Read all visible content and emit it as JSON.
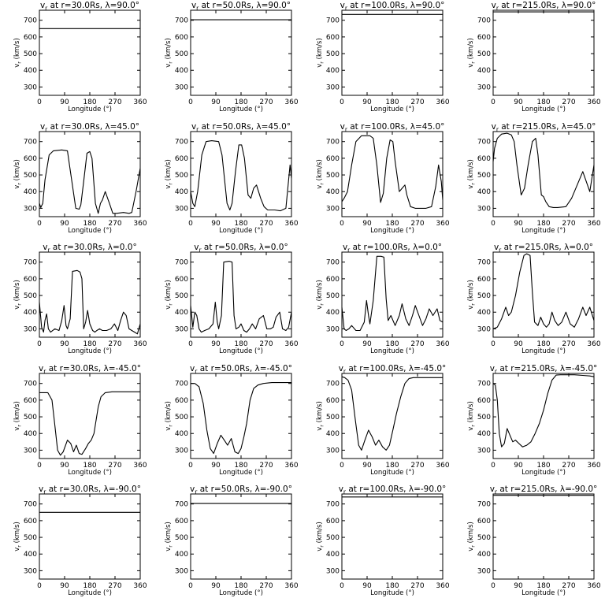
{
  "figure": {
    "xlabel": "Longitude (°)",
    "ylabel_main": "v",
    "ylabel_sub": "r",
    "ylabel_unit": "(km/s)",
    "title_var": "v",
    "title_sub": "r",
    "x_ticks": [
      "0",
      "90",
      "180",
      "270",
      "360"
    ],
    "y_ticks": [
      "300",
      "400",
      "500",
      "600",
      "700"
    ]
  },
  "chart_data": [
    {
      "type": "line",
      "title": "vr at r=30.0Rs, λ=90.0°",
      "r": "30.0",
      "lat": "90.0",
      "xlabel": "Longitude (°)",
      "ylabel": "vr (km/s)",
      "xlim": [
        0,
        360
      ],
      "ylim": [
        250,
        760
      ],
      "x": [
        0,
        360
      ],
      "y": [
        650,
        650
      ]
    },
    {
      "type": "line",
      "title": "vr at r=50.0Rs, λ=90.0°",
      "r": "50.0",
      "lat": "90.0",
      "xlabel": "Longitude (°)",
      "ylabel": "vr (km/s)",
      "xlim": [
        0,
        360
      ],
      "ylim": [
        250,
        760
      ],
      "x": [
        0,
        360
      ],
      "y": [
        703,
        703
      ]
    },
    {
      "type": "line",
      "title": "vr at r=100.0Rs, λ=90.0°",
      "r": "100.0",
      "lat": "90.0",
      "xlabel": "Longitude (°)",
      "ylabel": "vr (km/s)",
      "xlim": [
        0,
        360
      ],
      "ylim": [
        250,
        760
      ],
      "x": [
        0,
        360
      ],
      "y": [
        735,
        735
      ]
    },
    {
      "type": "line",
      "title": "vr at r=215.0Rs, λ=90.0°",
      "r": "215.0",
      "lat": "90.0",
      "xlabel": "Longitude (°)",
      "ylabel": "vr (km/s)",
      "xlim": [
        0,
        360
      ],
      "ylim": [
        250,
        760
      ],
      "x": [
        0,
        360
      ],
      "y": [
        750,
        750
      ]
    },
    {
      "type": "line",
      "title": "vr at r=30.0Rs, λ=45.0°",
      "r": "30.0",
      "lat": "45.0",
      "xlabel": "Longitude (°)",
      "ylabel": "vr (km/s)",
      "xlim": [
        0,
        360
      ],
      "ylim": [
        250,
        760
      ],
      "x": [
        0,
        5,
        12,
        20,
        35,
        50,
        80,
        100,
        110,
        130,
        142,
        148,
        158,
        170,
        180,
        188,
        200,
        210,
        218,
        225,
        235,
        250,
        262,
        275,
        300,
        320,
        330,
        345,
        360
      ],
      "y": [
        330,
        305,
        330,
        470,
        620,
        645,
        650,
        645,
        530,
        300,
        295,
        320,
        460,
        630,
        640,
        600,
        330,
        270,
        330,
        350,
        400,
        330,
        270,
        270,
        275,
        270,
        275,
        400,
        540
      ]
    },
    {
      "type": "line",
      "title": "vr at r=50.0Rs, λ=45.0°",
      "r": "50.0",
      "lat": "45.0",
      "xlabel": "Longitude (°)",
      "ylabel": "vr (km/s)",
      "xlim": [
        0,
        360
      ],
      "ylim": [
        250,
        760
      ],
      "x": [
        0,
        8,
        15,
        25,
        40,
        55,
        75,
        100,
        112,
        130,
        140,
        148,
        160,
        172,
        182,
        192,
        205,
        215,
        225,
        235,
        250,
        262,
        275,
        300,
        320,
        340,
        355,
        360
      ],
      "y": [
        400,
        330,
        310,
        400,
        620,
        700,
        705,
        700,
        620,
        330,
        290,
        330,
        520,
        680,
        680,
        600,
        380,
        360,
        420,
        440,
        360,
        310,
        290,
        290,
        285,
        300,
        560,
        480
      ]
    },
    {
      "type": "line",
      "title": "vr at r=100.0Rs, λ=45.0°",
      "r": "100.0",
      "lat": "45.0",
      "xlabel": "Longitude (°)",
      "ylabel": "vr (km/s)",
      "xlim": [
        0,
        360
      ],
      "ylim": [
        250,
        760
      ],
      "x": [
        0,
        8,
        20,
        35,
        50,
        70,
        100,
        112,
        125,
        138,
        148,
        160,
        172,
        182,
        190,
        205,
        215,
        225,
        232,
        245,
        262,
        280,
        300,
        320,
        335,
        345,
        355,
        360
      ],
      "y": [
        340,
        360,
        400,
        560,
        700,
        735,
        735,
        720,
        560,
        335,
        390,
        600,
        710,
        700,
        580,
        400,
        420,
        440,
        380,
        310,
        300,
        300,
        300,
        310,
        430,
        560,
        460,
        350
      ]
    },
    {
      "type": "line",
      "title": "vr at r=215.0Rs, λ=45.0°",
      "r": "215.0",
      "lat": "45.0",
      "xlabel": "Longitude (°)",
      "ylabel": "vr (km/s)",
      "xlim": [
        0,
        360
      ],
      "ylim": [
        250,
        760
      ],
      "x": [
        0,
        5,
        15,
        30,
        50,
        65,
        75,
        85,
        100,
        112,
        125,
        140,
        152,
        160,
        172,
        180,
        188,
        200,
        215,
        230,
        260,
        280,
        300,
        320,
        345,
        360
      ],
      "y": [
        580,
        660,
        720,
        745,
        750,
        740,
        700,
        560,
        380,
        420,
        560,
        700,
        720,
        620,
        380,
        370,
        340,
        310,
        305,
        305,
        310,
        360,
        440,
        520,
        400,
        560
      ]
    },
    {
      "type": "line",
      "title": "vr at r=30.0Rs, λ=0.0°",
      "r": "30.0",
      "lat": "0.0",
      "xlabel": "Longitude (°)",
      "ylabel": "vr (km/s)",
      "xlim": [
        0,
        360
      ],
      "ylim": [
        250,
        760
      ],
      "x": [
        0,
        8,
        15,
        20,
        26,
        32,
        40,
        55,
        70,
        80,
        88,
        95,
        100,
        110,
        118,
        135,
        145,
        152,
        158,
        165,
        172,
        180,
        190,
        198,
        205,
        215,
        225,
        240,
        255,
        268,
        280,
        290,
        300,
        310,
        320,
        330,
        340,
        350,
        360
      ],
      "y": [
        460,
        310,
        280,
        350,
        390,
        300,
        280,
        300,
        290,
        350,
        440,
        320,
        300,
        360,
        645,
        650,
        640,
        600,
        300,
        340,
        410,
        330,
        290,
        280,
        290,
        300,
        290,
        290,
        300,
        330,
        290,
        350,
        400,
        380,
        300,
        290,
        280,
        270,
        330
      ]
    },
    {
      "type": "line",
      "title": "vr at r=50.0Rs, λ=0.0°",
      "r": "50.0",
      "lat": "0.0",
      "xlabel": "Longitude (°)",
      "ylabel": "vr (km/s)",
      "xlim": [
        0,
        360
      ],
      "ylim": [
        250,
        760
      ],
      "x": [
        0,
        8,
        15,
        22,
        30,
        38,
        50,
        65,
        80,
        88,
        95,
        100,
        110,
        118,
        138,
        148,
        155,
        162,
        172,
        180,
        190,
        200,
        210,
        220,
        232,
        245,
        260,
        272,
        285,
        295,
        305,
        318,
        328,
        340,
        350,
        360
      ],
      "y": [
        440,
        310,
        400,
        380,
        300,
        280,
        290,
        300,
        330,
        460,
        340,
        300,
        380,
        700,
        705,
        700,
        380,
        300,
        310,
        330,
        290,
        280,
        300,
        330,
        300,
        360,
        380,
        300,
        300,
        310,
        370,
        400,
        300,
        290,
        310,
        400
      ]
    },
    {
      "type": "line",
      "title": "vr at r=100.0Rs, λ=0.0°",
      "r": "100.0",
      "lat": "0.0",
      "xlabel": "Longitude (°)",
      "ylabel": "vr (km/s)",
      "xlim": [
        0,
        360
      ],
      "ylim": [
        250,
        760
      ],
      "x": [
        0,
        8,
        15,
        25,
        35,
        50,
        65,
        80,
        88,
        95,
        100,
        112,
        125,
        140,
        150,
        158,
        165,
        175,
        190,
        205,
        215,
        228,
        240,
        252,
        262,
        275,
        288,
        300,
        312,
        325,
        340,
        350,
        360
      ],
      "y": [
        430,
        300,
        290,
        300,
        320,
        290,
        290,
        340,
        470,
        380,
        330,
        470,
        735,
        735,
        730,
        480,
        350,
        380,
        320,
        380,
        450,
        360,
        320,
        380,
        440,
        380,
        320,
        360,
        420,
        380,
        420,
        350,
        340
      ]
    },
    {
      "type": "line",
      "title": "vr at r=215.0Rs, λ=0.0°",
      "r": "215.0",
      "lat": "0.0",
      "xlabel": "Longitude (°)",
      "ylabel": "vr (km/s)",
      "xlim": [
        0,
        360
      ],
      "ylim": [
        250,
        760
      ],
      "x": [
        0,
        15,
        30,
        45,
        55,
        65,
        80,
        95,
        110,
        120,
        132,
        140,
        148,
        160,
        170,
        180,
        190,
        200,
        210,
        220,
        232,
        245,
        260,
        275,
        290,
        305,
        320,
        332,
        345,
        360
      ],
      "y": [
        300,
        310,
        360,
        430,
        380,
        400,
        500,
        640,
        740,
        750,
        740,
        520,
        340,
        320,
        370,
        330,
        310,
        330,
        400,
        350,
        320,
        340,
        400,
        330,
        310,
        360,
        430,
        380,
        430,
        350
      ]
    },
    {
      "type": "line",
      "title": "vr at r=30.0Rs, λ=-45.0°",
      "r": "30.0",
      "lat": "-45.0",
      "xlabel": "Longitude (°)",
      "ylabel": "vr (km/s)",
      "xlim": [
        0,
        360
      ],
      "ylim": [
        250,
        760
      ],
      "x": [
        0,
        30,
        45,
        55,
        65,
        75,
        85,
        100,
        112,
        122,
        132,
        142,
        152,
        165,
        175,
        185,
        195,
        210,
        220,
        235,
        260,
        290,
        320,
        360
      ],
      "y": [
        645,
        645,
        600,
        450,
        300,
        270,
        290,
        360,
        340,
        290,
        330,
        280,
        275,
        310,
        340,
        360,
        400,
        560,
        620,
        645,
        650,
        650,
        650,
        650
      ]
    },
    {
      "type": "line",
      "title": "vr at r=50.0Rs, λ=-45.0°",
      "r": "50.0",
      "lat": "-45.0",
      "xlabel": "Longitude (°)",
      "ylabel": "vr (km/s)",
      "xlim": [
        0,
        360
      ],
      "ylim": [
        250,
        760
      ],
      "x": [
        0,
        15,
        30,
        45,
        58,
        70,
        82,
        95,
        108,
        120,
        132,
        145,
        158,
        170,
        180,
        190,
        200,
        212,
        225,
        240,
        260,
        290,
        330,
        360
      ],
      "y": [
        700,
        700,
        680,
        580,
        420,
        310,
        280,
        340,
        390,
        360,
        330,
        370,
        290,
        280,
        310,
        380,
        460,
        600,
        670,
        690,
        700,
        705,
        705,
        705
      ]
    },
    {
      "type": "line",
      "title": "vr at r=100.0Rs, λ=-45.0°",
      "r": "100.0",
      "lat": "-45.0",
      "xlabel": "Longitude (°)",
      "ylabel": "vr (km/s)",
      "xlim": [
        0,
        360
      ],
      "ylim": [
        250,
        760
      ],
      "x": [
        0,
        10,
        22,
        35,
        48,
        60,
        70,
        82,
        95,
        108,
        120,
        132,
        145,
        158,
        170,
        182,
        195,
        210,
        225,
        240,
        255,
        270,
        300,
        330,
        360
      ],
      "y": [
        740,
        735,
        720,
        660,
        480,
        330,
        300,
        360,
        420,
        380,
        330,
        360,
        320,
        300,
        330,
        420,
        520,
        620,
        700,
        730,
        735,
        735,
        735,
        735,
        735
      ]
    },
    {
      "type": "line",
      "title": "vr at r=215.0Rs, λ=-45.0°",
      "r": "215.0",
      "lat": "-45.0",
      "xlabel": "Longitude (°)",
      "ylabel": "vr (km/s)",
      "xlim": [
        0,
        360
      ],
      "ylim": [
        250,
        760
      ],
      "x": [
        0,
        8,
        15,
        22,
        30,
        40,
        50,
        60,
        70,
        80,
        92,
        105,
        120,
        135,
        150,
        165,
        180,
        195,
        210,
        225,
        240,
        260,
        290,
        320,
        345,
        360
      ],
      "y": [
        700,
        690,
        600,
        400,
        320,
        340,
        430,
        390,
        350,
        360,
        340,
        320,
        330,
        350,
        400,
        460,
        540,
        640,
        720,
        750,
        752,
        752,
        752,
        748,
        745,
        740
      ]
    },
    {
      "type": "line",
      "title": "vr at r=30.0Rs, λ=-90.0°",
      "r": "30.0",
      "lat": "-90.0",
      "xlabel": "Longitude (°)",
      "ylabel": "vr (km/s)",
      "xlim": [
        0,
        360
      ],
      "ylim": [
        250,
        760
      ],
      "x": [
        0,
        360
      ],
      "y": [
        650,
        650
      ]
    },
    {
      "type": "line",
      "title": "vr at r=50.0Rs, λ=-90.0°",
      "r": "50.0",
      "lat": "-90.0",
      "xlabel": "Longitude (°)",
      "ylabel": "vr (km/s)",
      "xlim": [
        0,
        360
      ],
      "ylim": [
        250,
        760
      ],
      "x": [
        0,
        360
      ],
      "y": [
        703,
        703
      ]
    },
    {
      "type": "line",
      "title": "vr at r=100.0Rs, λ=-90.0°",
      "r": "100.0",
      "lat": "-90.0",
      "xlabel": "Longitude (°)",
      "ylabel": "vr (km/s)",
      "xlim": [
        0,
        360
      ],
      "ylim": [
        250,
        760
      ],
      "x": [
        0,
        360
      ],
      "y": [
        742,
        742
      ]
    },
    {
      "type": "line",
      "title": "vr at r=215.0Rs, λ=-90.0°",
      "r": "215.0",
      "lat": "-90.0",
      "xlabel": "Longitude (°)",
      "ylabel": "vr (km/s)",
      "xlim": [
        0,
        360
      ],
      "ylim": [
        250,
        760
      ],
      "x": [
        0,
        360
      ],
      "y": [
        752,
        752
      ]
    }
  ]
}
